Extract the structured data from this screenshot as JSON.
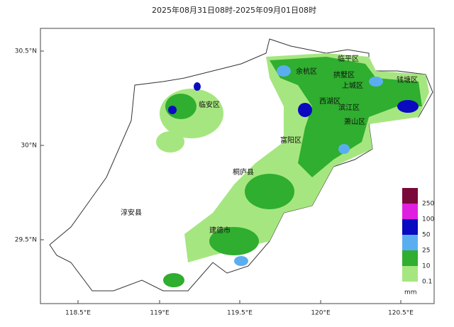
{
  "title": "2025年08月31日08时-2025年09月01日08时",
  "lat_labels": [
    "30.5°N",
    "30°N",
    "29.5°N"
  ],
  "lon_labels": [
    "118.5°E",
    "119°E",
    "119.5°E",
    "120°E",
    "120.5°E"
  ],
  "regions": [
    "临安区",
    "余杭区",
    "临平区",
    "拱墅区",
    "上城区",
    "西湖区",
    "滨江区",
    "萧山区",
    "钱塘区",
    "富阳区",
    "桐庐县",
    "建德市",
    "淳安县"
  ],
  "legend": {
    "unit": "mm",
    "items": [
      {
        "label": "250",
        "color": "#7a0a3a"
      },
      {
        "label": "100",
        "color": "#e020e0"
      },
      {
        "label": "50",
        "color": "#0a0ac0"
      },
      {
        "label": "25",
        "color": "#5aaef0"
      },
      {
        "label": "10",
        "color": "#2fae2f"
      },
      {
        "label": "0.1",
        "color": "#a6e680"
      }
    ]
  }
}
